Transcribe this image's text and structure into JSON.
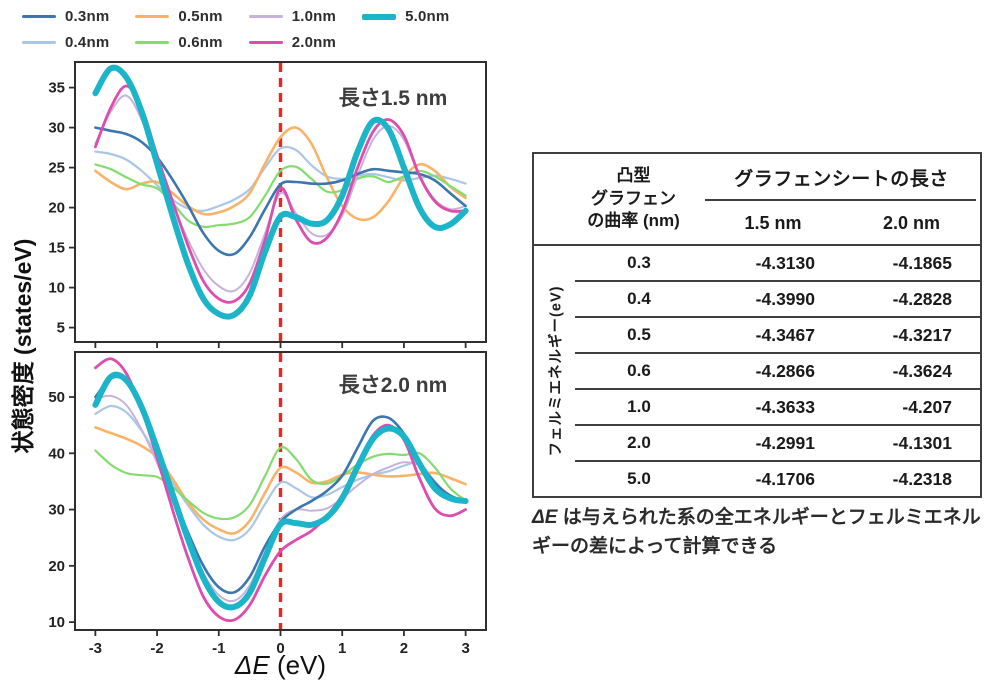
{
  "legend": {
    "items": [
      {
        "label": "0.3nm",
        "color": "#3B76AF",
        "line_width": 3.5
      },
      {
        "label": "0.4nm",
        "color": "#AAC7E8",
        "line_width": 3
      },
      {
        "label": "0.5nm",
        "color": "#F8B368",
        "line_width": 3.5
      },
      {
        "label": "0.6nm",
        "color": "#82DC6E",
        "line_width": 3
      },
      {
        "label": "1.0nm",
        "color": "#C7B2DC",
        "line_width": 3
      },
      {
        "label": "2.0nm",
        "color": "#DD4DB0",
        "line_width": 3.5
      },
      {
        "label": "5.0nm",
        "color": "#1CB4C9",
        "line_width": 6
      }
    ]
  },
  "axis": {
    "ylabel": "状態密度 (states/eV)",
    "xlabel_math": "ΔE",
    "xlabel_unit": " (eV)"
  },
  "chart_data": [
    {
      "type": "line",
      "panel_label": "長さ1.5 nm",
      "xlabel": "ΔE (eV)",
      "ylabel": "状態密度 (states/eV)",
      "xlim": [
        -3.33,
        3.33
      ],
      "ylim": [
        3.2,
        38.2
      ],
      "xticks": [
        -3,
        -2,
        -1,
        0,
        1,
        2,
        3
      ],
      "show_xtick_labels": false,
      "yticks": [
        5,
        10,
        15,
        20,
        25,
        30,
        35
      ],
      "vline": {
        "x": 0,
        "color": "#E8271E",
        "style": "dashed"
      },
      "x": [
        -3,
        -2.75,
        -2.5,
        -2.25,
        -2,
        -1.75,
        -1.5,
        -1.25,
        -1,
        -0.75,
        -0.5,
        -0.25,
        0,
        0.25,
        0.5,
        0.75,
        1,
        1.25,
        1.5,
        1.75,
        2,
        2.25,
        2.5,
        2.75,
        3
      ],
      "series": [
        {
          "name": "0.4nm",
          "color": "#AAC7E8",
          "width": 2.2,
          "values": [
            27.0,
            26.7,
            26.0,
            24.6,
            22.8,
            21.0,
            19.9,
            19.6,
            20.2,
            21.0,
            22.3,
            25.0,
            27.4,
            27.2,
            25.3,
            23.9,
            23.6,
            24.0,
            24.2,
            23.8,
            23.4,
            23.7,
            24.0,
            23.6,
            23.0
          ]
        },
        {
          "name": "0.5nm",
          "color": "#F8B368",
          "width": 2.6,
          "values": [
            24.6,
            23.2,
            22.3,
            23.0,
            23.2,
            21.8,
            20.2,
            19.2,
            19.4,
            20.2,
            21.8,
            25.5,
            28.8,
            30.0,
            28.0,
            23.8,
            20.2,
            18.6,
            18.8,
            20.8,
            23.8,
            25.4,
            24.6,
            22.6,
            21.2
          ]
        },
        {
          "name": "0.6nm",
          "color": "#82DC6E",
          "width": 2.2,
          "values": [
            25.4,
            24.8,
            23.8,
            22.9,
            22.4,
            20.6,
            18.4,
            17.6,
            17.8,
            18.0,
            18.8,
            21.5,
            24.6,
            25.1,
            23.6,
            22.0,
            22.2,
            23.6,
            23.9,
            23.2,
            23.9,
            24.6,
            23.9,
            22.7,
            21.5
          ]
        },
        {
          "name": "1.0nm",
          "color": "#C7B2DC",
          "width": 2.0,
          "values": [
            28.0,
            32.0,
            34.0,
            31.0,
            25.5,
            20.5,
            16.0,
            12.3,
            10.2,
            9.6,
            11.8,
            16.8,
            21.8,
            19.3,
            16.8,
            16.6,
            19.0,
            24.0,
            28.5,
            30.2,
            28.5,
            24.0,
            21.0,
            19.8,
            20.2
          ]
        },
        {
          "name": "0.3nm",
          "color": "#3B76AF",
          "width": 2.6,
          "values": [
            30.0,
            29.6,
            29.2,
            28.2,
            26.3,
            23.5,
            20.3,
            16.8,
            14.6,
            14.2,
            16.3,
            19.8,
            22.9,
            23.2,
            23.0,
            23.0,
            23.4,
            24.2,
            24.8,
            24.6,
            24.4,
            24.2,
            23.4,
            21.8,
            20.2
          ]
        },
        {
          "name": "2.0nm",
          "color": "#DD4DB0",
          "width": 2.8,
          "values": [
            27.6,
            32.5,
            35.2,
            32.5,
            26.5,
            20.8,
            15.3,
            10.8,
            8.6,
            8.3,
            10.5,
            16.0,
            22.4,
            18.5,
            15.7,
            16.2,
            19.5,
            25.0,
            29.5,
            31.0,
            29.0,
            24.0,
            20.8,
            19.6,
            19.6
          ]
        },
        {
          "name": "5.0nm",
          "color": "#1CB4C9",
          "width": 6.0,
          "values": [
            34.3,
            37.4,
            36.3,
            32.0,
            25.5,
            19.0,
            13.0,
            8.6,
            6.7,
            6.6,
            9.0,
            14.5,
            18.9,
            18.8,
            18.0,
            18.4,
            21.5,
            27.0,
            30.8,
            29.8,
            25.0,
            20.0,
            17.6,
            17.9,
            19.6
          ]
        }
      ]
    },
    {
      "type": "line",
      "panel_label": "長さ2.0 nm",
      "xlabel": "ΔE (eV)",
      "ylabel": "状態密度 (states/eV)",
      "xlim": [
        -3.33,
        3.33
      ],
      "ylim": [
        8.6,
        58.0
      ],
      "xticks": [
        -3,
        -2,
        -1,
        0,
        1,
        2,
        3
      ],
      "show_xtick_labels": true,
      "yticks": [
        10,
        20,
        30,
        40,
        50
      ],
      "vline": {
        "x": 0,
        "color": "#E8271E",
        "style": "dashed"
      },
      "x": [
        -3,
        -2.75,
        -2.5,
        -2.25,
        -2,
        -1.75,
        -1.5,
        -1.25,
        -1,
        -0.75,
        -0.5,
        -0.25,
        0,
        0.25,
        0.5,
        0.75,
        1,
        1.25,
        1.5,
        1.75,
        2,
        2.25,
        2.5,
        2.75,
        3
      ],
      "series": [
        {
          "name": "0.4nm",
          "color": "#AAC7E8",
          "width": 2.2,
          "values": [
            47.0,
            48.4,
            47.3,
            44.0,
            39.5,
            34.8,
            30.8,
            27.3,
            25.2,
            24.6,
            26.5,
            31.0,
            34.8,
            33.8,
            32.2,
            32.6,
            34.0,
            35.3,
            36.2,
            36.8,
            37.8,
            38.2,
            35.0,
            32.2,
            31.5
          ]
        },
        {
          "name": "0.5nm",
          "color": "#F8B368",
          "width": 2.6,
          "values": [
            44.6,
            43.6,
            42.6,
            41.3,
            39.3,
            35.5,
            31.3,
            28.2,
            26.5,
            25.8,
            28.0,
            33.0,
            37.4,
            36.6,
            34.8,
            35.0,
            36.2,
            36.6,
            36.2,
            35.9,
            36.0,
            36.3,
            36.5,
            35.6,
            34.5
          ]
        },
        {
          "name": "0.6nm",
          "color": "#82DC6E",
          "width": 2.2,
          "values": [
            40.5,
            38.0,
            36.5,
            36.1,
            35.8,
            34.0,
            31.6,
            29.4,
            28.4,
            28.6,
            30.8,
            36.0,
            41.0,
            39.0,
            35.3,
            34.6,
            36.0,
            38.0,
            39.4,
            39.9,
            39.7,
            40.0,
            37.5,
            33.8,
            31.6
          ]
        },
        {
          "name": "1.0nm",
          "color": "#C7B2DC",
          "width": 2.0,
          "values": [
            49.6,
            50.2,
            48.6,
            44.2,
            38.3,
            31.5,
            24.8,
            18.7,
            14.8,
            13.8,
            16.5,
            22.5,
            28.2,
            30.0,
            29.8,
            30.2,
            32.0,
            34.3,
            36.3,
            37.5,
            38.4,
            37.8,
            34.8,
            32.4,
            31.6
          ]
        },
        {
          "name": "0.3nm",
          "color": "#3B76AF",
          "width": 2.6,
          "values": [
            50.0,
            53.3,
            52.8,
            48.0,
            40.5,
            33.0,
            26.0,
            20.0,
            16.2,
            15.3,
            18.0,
            23.5,
            27.8,
            30.0,
            31.5,
            33.3,
            36.0,
            41.0,
            45.8,
            46.3,
            43.5,
            38.5,
            34.8,
            32.5,
            31.5
          ]
        },
        {
          "name": "2.0nm",
          "color": "#DD4DB0",
          "width": 2.8,
          "values": [
            55.2,
            56.8,
            54.2,
            47.8,
            39.2,
            30.0,
            21.5,
            14.5,
            11.0,
            10.4,
            13.0,
            18.3,
            22.6,
            24.6,
            26.2,
            28.8,
            32.6,
            38.0,
            43.2,
            45.0,
            42.4,
            35.6,
            30.2,
            28.9,
            30.0
          ]
        },
        {
          "name": "5.0nm",
          "color": "#1CB4C9",
          "width": 6.0,
          "values": [
            48.6,
            53.6,
            53.0,
            48.2,
            40.8,
            32.8,
            24.8,
            17.8,
            13.6,
            12.7,
            15.2,
            21.5,
            27.4,
            27.6,
            27.3,
            28.6,
            32.0,
            37.6,
            42.6,
            44.4,
            43.0,
            38.2,
            33.8,
            32.0,
            31.5
          ]
        }
      ]
    }
  ],
  "table": {
    "col1_header": "凸型\nグラフェン\nの曲率 (nm)",
    "span_header": "グラフェンシートの長さ",
    "sub_headers": [
      "1.5 nm",
      "2.0 nm"
    ],
    "row_label": "フェルミエネルギー(eV)",
    "rows": [
      {
        "curvature": "0.3",
        "len15": "-4.3130",
        "len20": "-4.1865"
      },
      {
        "curvature": "0.4",
        "len15": "-4.3990",
        "len20": "-4.2828"
      },
      {
        "curvature": "0.5",
        "len15": "-4.3467",
        "len20": "-4.3217"
      },
      {
        "curvature": "0.6",
        "len15": "-4.2866",
        "len20": "-4.3624"
      },
      {
        "curvature": "1.0",
        "len15": "-4.3633",
        "len20": "-4.207"
      },
      {
        "curvature": "2.0",
        "len15": "-4.2991",
        "len20": "-4.1301"
      },
      {
        "curvature": "5.0",
        "len15": "-4.1706",
        "len20": "-4.2318"
      }
    ]
  },
  "caption": {
    "math": "ΔE",
    "text": " は与えられた系の全エネルギーとフェルミエネルギーの差によって計算できる"
  },
  "colors": {
    "fermi_line": "#E8271E",
    "frame": "#2f2f2f",
    "tick_text": "#222222"
  }
}
